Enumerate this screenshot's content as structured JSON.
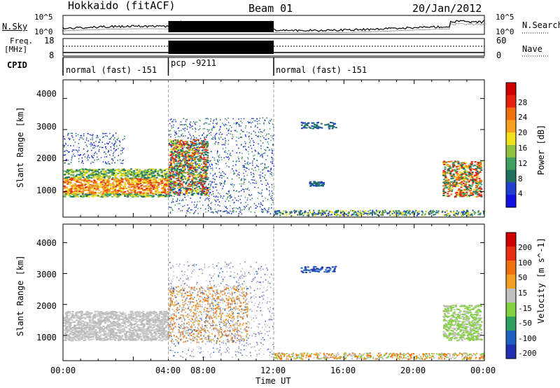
{
  "header": {
    "station": "Hokkaido (fitACF)",
    "beam": "Beam 01",
    "date": "20/Jan/2012"
  },
  "top_panel": {
    "left_label": "N.Sky",
    "right_label": "N.Search",
    "left_ticks": [
      "10^5",
      "10^0"
    ],
    "right_ticks": [
      "10^5",
      "10^0"
    ]
  },
  "freq_panel": {
    "left_label_line1": "Freq.",
    "left_label_line2": "[MHz]",
    "right_label": "Nave",
    "left_ticks": [
      "18",
      "8"
    ],
    "right_ticks": [
      "60",
      "0"
    ]
  },
  "cpid": {
    "label": "CPID",
    "modes": [
      {
        "text": "normal (fast) -151"
      },
      {
        "text": "pcp -9211"
      },
      {
        "text": "normal (fast) -151"
      }
    ]
  },
  "axis": {
    "ylabel": "Slant Range [km]",
    "yticks": [
      "4000",
      "3000",
      "2000",
      "1000"
    ],
    "xticks": [
      "00:00",
      "04:00",
      "08:00",
      "12:00",
      "16:00",
      "20:00",
      "00:00"
    ],
    "xlabel": "Time UT"
  },
  "chart_data": [
    {
      "type": "heatmap",
      "title": "Power [dB]",
      "xlabel": "Time UT",
      "ylabel": "Slant Range [km]",
      "xlim_hours": [
        0,
        24
      ],
      "ylim_km": [
        180,
        4600
      ],
      "colorbar": {
        "label": "Power [dB]",
        "ticks": [
          "28",
          "24",
          "20",
          "16",
          "12",
          "8",
          "4"
        ],
        "colors": [
          "#1010e0",
          "#2040d0",
          "#207060",
          "#40a060",
          "#90c040",
          "#f0e020",
          "#f8a020",
          "#f07010",
          "#e82010",
          "#d00000"
        ]
      },
      "echo_regions": [
        {
          "t_start": 0.0,
          "t_end": 6.0,
          "r_min": 800,
          "r_max": 1800,
          "level": "high"
        },
        {
          "t_start": 6.0,
          "t_end": 9.5,
          "r_min": 900,
          "r_max": 2800,
          "level": "very high"
        },
        {
          "t_start": 6.0,
          "t_end": 12.0,
          "r_min": 300,
          "r_max": 3400,
          "level": "scatter"
        },
        {
          "t_start": 21.5,
          "t_end": 24.0,
          "r_min": 800,
          "r_max": 2000,
          "level": "high"
        }
      ]
    },
    {
      "type": "heatmap",
      "title": "Velocity [m s^-1]",
      "xlabel": "Time UT",
      "ylabel": "Slant Range [km]",
      "xlim_hours": [
        0,
        24
      ],
      "ylim_km": [
        180,
        4600
      ],
      "colorbar": {
        "label": "Velocity [m s^-1]",
        "ticks": [
          "200",
          "100",
          "50",
          "15",
          "-15",
          "-50",
          "-100",
          "-200"
        ],
        "colors": [
          "#2030b0",
          "#2060c0",
          "#30a060",
          "#80d040",
          "#c0c0c0",
          "#f0a020",
          "#f07010",
          "#e83010",
          "#d00000"
        ]
      },
      "echo_regions": [
        {
          "t_start": 0.0,
          "t_end": 6.0,
          "r_min": 800,
          "r_max": 1800,
          "level": "ground scatter"
        },
        {
          "t_start": 6.0,
          "t_end": 10.5,
          "r_min": 800,
          "r_max": 2600,
          "level": "away (orange)"
        },
        {
          "t_start": 21.5,
          "t_end": 24.0,
          "r_min": 800,
          "r_max": 2000,
          "level": "toward (green)"
        }
      ]
    }
  ]
}
